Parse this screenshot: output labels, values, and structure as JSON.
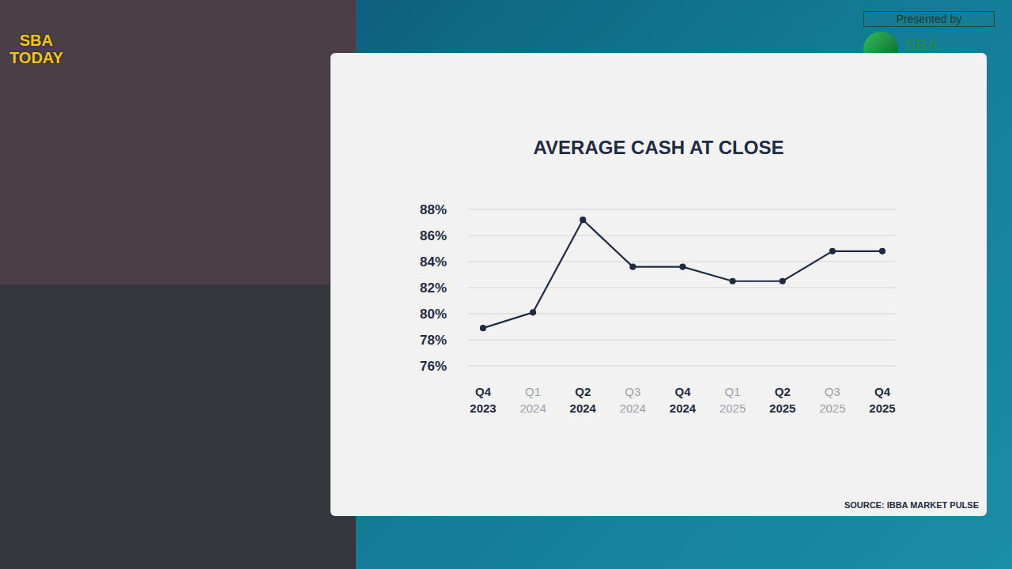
{
  "header": {
    "logo": "SBA TODAY",
    "presented_by": "Presented by",
    "sponsor": "SBA Collective"
  },
  "chart_data": {
    "type": "line",
    "title": "AVERAGE CASH AT CLOSE",
    "source": "SOURCE: IBBA MARKET PULSE",
    "categories": [
      "Q4 2023",
      "Q1 2024",
      "Q2 2024",
      "Q3 2024",
      "Q4 2024",
      "Q1 2025",
      "Q2 2025",
      "Q3 2025",
      "Q4 2025"
    ],
    "values": [
      78.9,
      80.1,
      87.2,
      83.6,
      83.6,
      82.5,
      82.5,
      84.8,
      84.8
    ],
    "color": "#1f2a44",
    "marker": "circle",
    "ylim": [
      76,
      88
    ],
    "yticks": [
      {
        "value": 76,
        "label": "76%"
      },
      {
        "value": 78,
        "label": "78%"
      },
      {
        "value": 80,
        "label": "80%"
      },
      {
        "value": 82,
        "label": "82%"
      },
      {
        "value": 84,
        "label": "84%"
      },
      {
        "value": 86,
        "label": "86%"
      },
      {
        "value": 88,
        "label": "88%"
      }
    ],
    "grid": true
  }
}
